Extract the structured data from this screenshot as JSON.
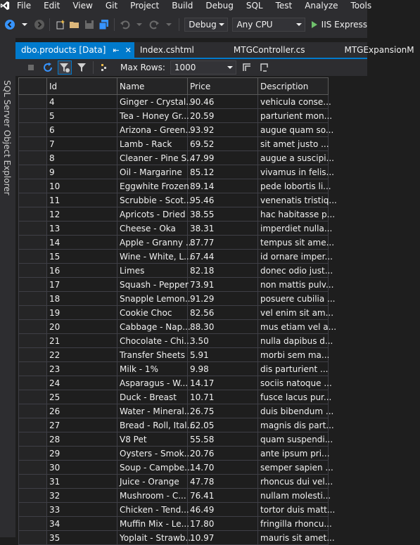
{
  "menu": {
    "items": [
      "File",
      "Edit",
      "View",
      "Git",
      "Project",
      "Build",
      "Debug",
      "SQL",
      "Test",
      "Analyze",
      "Tools"
    ]
  },
  "toolbar": {
    "configuration": "Debug",
    "platform": "Any CPU",
    "run_label": "IIS Express"
  },
  "sidebar": {
    "label": "SQL Server Object Explorer"
  },
  "tabs": [
    {
      "label": "dbo.products [Data]",
      "active": true
    },
    {
      "label": "Index.cshtml",
      "active": false
    },
    {
      "label": "MTGController.cs",
      "active": false
    },
    {
      "label": "MTGExpansionM",
      "active": false
    }
  ],
  "gridbar": {
    "max_rows_label": "Max Rows:",
    "max_rows_value": "1000"
  },
  "table": {
    "columns": [
      "Id",
      "Name",
      "Price",
      "Description"
    ],
    "rows": [
      [
        "4",
        "Ginger - Crystal...",
        "90.46",
        "vehicula conse..."
      ],
      [
        "5",
        "Tea - Honey Gr...",
        "20.59",
        "parturient mon..."
      ],
      [
        "6",
        "Arizona - Green...",
        "93.92",
        "augue quam so..."
      ],
      [
        "7",
        "Lamb - Rack",
        "69.52",
        "sit amet justo ..."
      ],
      [
        "8",
        "Cleaner - Pine S...",
        "47.99",
        "augue a suscipi..."
      ],
      [
        "9",
        "Oil - Margarine",
        "85.12",
        "vivamus in felis..."
      ],
      [
        "10",
        "Eggwhite Frozen",
        "89.14",
        "pede lobortis li..."
      ],
      [
        "11",
        "Scrubbie - Scot...",
        "95.46",
        "venenatis tristiq..."
      ],
      [
        "12",
        "Apricots - Dried",
        "38.55",
        "hac habitasse p..."
      ],
      [
        "13",
        "Cheese - Oka",
        "38.31",
        "imperdiet nulla..."
      ],
      [
        "14",
        "Apple - Granny ...",
        "87.77",
        "tempus sit ame..."
      ],
      [
        "15",
        "Wine - White, L...",
        "67.44",
        "id ornare imper..."
      ],
      [
        "16",
        "Limes",
        "82.18",
        "donec odio just..."
      ],
      [
        "17",
        "Squash - Pepper",
        "73.91",
        "non mattis pulv..."
      ],
      [
        "18",
        "Snapple Lemon...",
        "91.29",
        "posuere cubilia ..."
      ],
      [
        "19",
        "Cookie Choc",
        "82.56",
        "vel enim sit am..."
      ],
      [
        "20",
        "Cabbage - Nap...",
        "88.30",
        "mus etiam vel a..."
      ],
      [
        "21",
        "Chocolate - Chi...",
        "3.50",
        "nulla dapibus d..."
      ],
      [
        "22",
        "Transfer Sheets",
        "5.91",
        "morbi sem ma..."
      ],
      [
        "23",
        "Milk - 1%",
        "9.98",
        "dis parturient ..."
      ],
      [
        "24",
        "Asparagus - W...",
        "14.17",
        "sociis natoque ..."
      ],
      [
        "25",
        "Duck - Breast",
        "10.71",
        "fusce lacus pur..."
      ],
      [
        "26",
        "Water - Mineral...",
        "26.75",
        "duis bibendum ..."
      ],
      [
        "27",
        "Bread - Roll, Ital...",
        "62.05",
        "magnis dis part..."
      ],
      [
        "28",
        "V8 Pet",
        "55.58",
        "quam suspendi..."
      ],
      [
        "29",
        "Oysters - Smok...",
        "20.76",
        "ante ipsum pri..."
      ],
      [
        "30",
        "Soup - Campbe...",
        "14.70",
        "semper sapien ..."
      ],
      [
        "31",
        "Juice - Orange",
        "47.78",
        "rhoncus dui vel..."
      ],
      [
        "32",
        "Mushroom - C...",
        "76.41",
        "nullam molesti..."
      ],
      [
        "33",
        "Chicken - Tend...",
        "46.49",
        "tortor duis matt..."
      ],
      [
        "34",
        "Muffin Mix - Le...",
        "17.80",
        "fringilla rhoncu..."
      ],
      [
        "35",
        "Yoplait - Strawb...",
        "10.97",
        "mauris sit amet..."
      ]
    ]
  },
  "colors": {
    "accent": "#007acc",
    "background": "#1e1e1e",
    "chrome": "#2d2d30"
  }
}
